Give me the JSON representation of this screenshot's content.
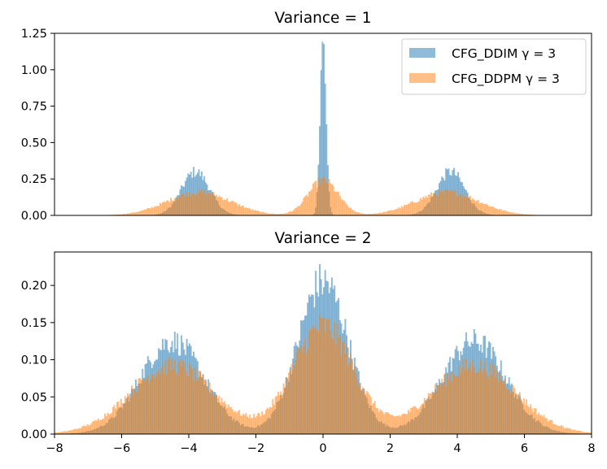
{
  "chart_data": [
    {
      "type": "histogram",
      "title": "Variance = 1",
      "xlabel": "",
      "ylabel": "",
      "xlim": [
        -8,
        8
      ],
      "ylim": [
        0,
        1.25
      ],
      "yticks": [
        0.0,
        0.25,
        0.5,
        0.75,
        1.0,
        1.25
      ],
      "ytick_labels": [
        "0.00",
        "0.25",
        "0.50",
        "0.75",
        "1.00",
        "1.25"
      ],
      "show_xtick_labels": false,
      "legend_position": "top-right",
      "grid": false,
      "bin_width": 0.04,
      "series": [
        {
          "name": "CFG_DDIM γ = 3",
          "color": "#1f77b4",
          "alpha": 0.5,
          "components": [
            {
              "center": -3.8,
              "peak": 0.3,
              "sigma": 0.42
            },
            {
              "center": 0.0,
              "peak": 1.18,
              "sigma": 0.09
            },
            {
              "center": 3.8,
              "peak": 0.3,
              "sigma": 0.42
            }
          ]
        },
        {
          "name": "CFG_DDPM γ = 3",
          "color": "#ff7f0e",
          "alpha": 0.5,
          "components": [
            {
              "center": -3.7,
              "peak": 0.16,
              "sigma": 0.95
            },
            {
              "center": 0.0,
              "peak": 0.24,
              "sigma": 0.45
            },
            {
              "center": 3.7,
              "peak": 0.16,
              "sigma": 0.95
            }
          ]
        }
      ]
    },
    {
      "type": "histogram",
      "title": "Variance = 2",
      "xlabel": "",
      "ylabel": "",
      "xlim": [
        -8,
        8
      ],
      "ylim": [
        0,
        0.245
      ],
      "yticks": [
        0.0,
        0.05,
        0.1,
        0.15,
        0.2
      ],
      "ytick_labels": [
        "0.00",
        "0.05",
        "0.10",
        "0.15",
        "0.20"
      ],
      "xticks": [
        -8,
        -6,
        -4,
        -2,
        0,
        2,
        4,
        6,
        8
      ],
      "xtick_labels": [
        "−8",
        "−6",
        "−4",
        "−2",
        "0",
        "2",
        "4",
        "6",
        "8"
      ],
      "show_xtick_labels": true,
      "grid": false,
      "bin_width": 0.04,
      "series": [
        {
          "name": "CFG_DDIM γ = 3",
          "color": "#1f77b4",
          "alpha": 0.5,
          "components": [
            {
              "center": -4.5,
              "peak": 0.125,
              "sigma": 0.95
            },
            {
              "center": 0.0,
              "peak": 0.205,
              "sigma": 0.75
            },
            {
              "center": 4.5,
              "peak": 0.125,
              "sigma": 0.95
            }
          ]
        },
        {
          "name": "CFG_DDPM γ = 3",
          "color": "#ff7f0e",
          "alpha": 0.5,
          "components": [
            {
              "center": -4.5,
              "peak": 0.092,
              "sigma": 1.25
            },
            {
              "center": 0.0,
              "peak": 0.145,
              "sigma": 0.9
            },
            {
              "center": 4.5,
              "peak": 0.092,
              "sigma": 1.25
            }
          ]
        }
      ]
    }
  ]
}
